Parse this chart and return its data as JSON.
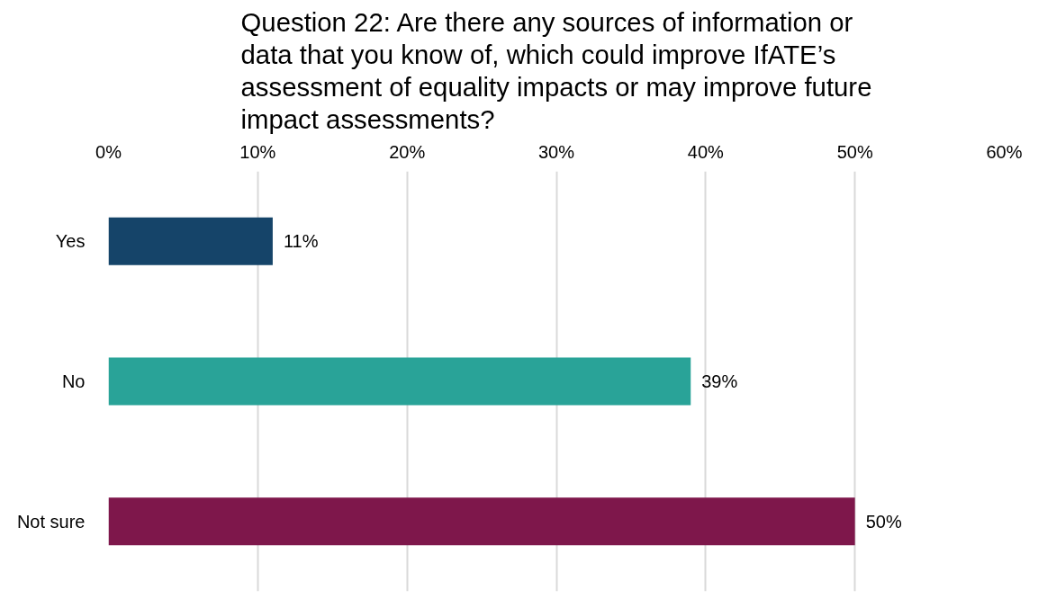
{
  "chart_data": {
    "type": "bar",
    "orientation": "horizontal",
    "title": "Question 22: Are there any sources of information or data that you know of, which could improve IfATE’s assessment of equality impacts or may improve future impact assessments?",
    "categories": [
      "Yes",
      "No",
      "Not sure"
    ],
    "values": [
      11,
      39,
      50
    ],
    "colors": [
      "#154469",
      "#29a398",
      "#7e174b"
    ],
    "value_labels": [
      "11%",
      "39%",
      "50%"
    ],
    "xlim": [
      0,
      60
    ],
    "xticks": [
      {
        "value": 0,
        "label": "0%"
      },
      {
        "value": 10,
        "label": "10%"
      },
      {
        "value": 20,
        "label": "20%"
      },
      {
        "value": 30,
        "label": "30%"
      },
      {
        "value": 40,
        "label": "40%"
      },
      {
        "value": 50,
        "label": "50%"
      },
      {
        "value": 60,
        "label": "60%"
      }
    ],
    "grid": "x"
  }
}
